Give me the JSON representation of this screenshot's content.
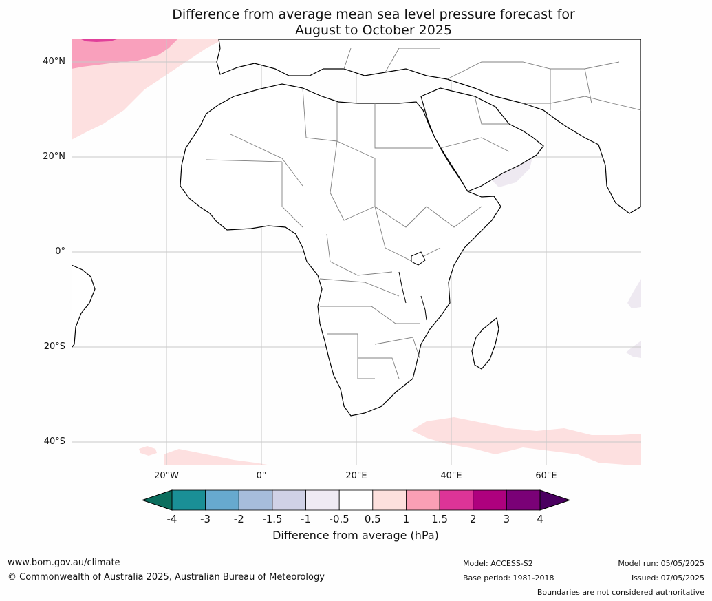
{
  "title": {
    "line1": "Difference from average mean sea level pressure forecast for",
    "line2": "August to October 2025"
  },
  "map": {
    "lat_labels": [
      "40°N",
      "20°N",
      "0°",
      "20°S",
      "40°S"
    ],
    "lon_labels": [
      "20°W",
      "0°",
      "20°E",
      "40°E",
      "60°E"
    ],
    "colors": {
      "land_outline": "#000000",
      "border": "#808080",
      "grid": "#c8c8c8",
      "anomaly_pink_light": "#fde0e0",
      "anomaly_pink_mid": "#f9a0bc",
      "anomaly_magenta": "#e0409a",
      "anomaly_lavender": "#eee9f1",
      "anomaly_blue": "#6aa6cc"
    }
  },
  "colorbar": {
    "ticks": [
      "-4",
      "-3",
      "-2",
      "-1.5",
      "-1",
      "-0.5",
      "0.5",
      "1",
      "1.5",
      "2",
      "3",
      "4"
    ],
    "colors": [
      "#1a8f96",
      "#67a9cf",
      "#a6bddb",
      "#d0d1e6",
      "#efeaf3",
      "#ffffff",
      "#fde0dd",
      "#fa9fb5",
      "#dd3497",
      "#ae017e",
      "#7a0177"
    ],
    "extend_low_color": "#0b6e5e",
    "extend_high_color": "#4a0060",
    "label": "Difference from average (hPa)"
  },
  "footer": {
    "website": "www.bom.gov.au/climate",
    "copyright": "© Commonwealth of Australia 2025, Australian Bureau of Meteorology",
    "model": "Model: ACCESS-S2",
    "base_period": "Base period: 1981-2018",
    "model_run": "Model run: 05/05/2025",
    "issued": "Issued: 07/05/2025",
    "disclaimer": "Boundaries are not considered authoritative"
  }
}
